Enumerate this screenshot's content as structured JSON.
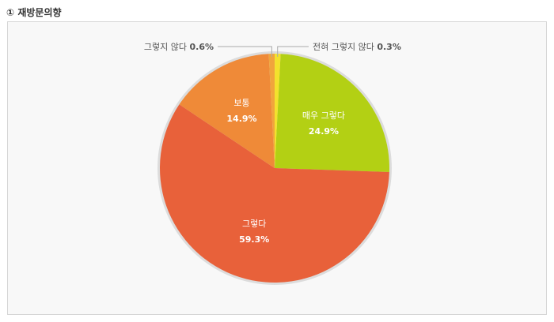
{
  "title": "① 재방문의향",
  "chart_data": {
    "type": "pie",
    "title": "",
    "slices": [
      {
        "label": "매우 그렇다",
        "value": 24.9,
        "display": "24.9%",
        "color": "#b3d014"
      },
      {
        "label": "그렇다",
        "value": 59.3,
        "display": "59.3%",
        "color": "#e8613a"
      },
      {
        "label": "보통",
        "value": 14.9,
        "display": "14.9%",
        "color": "#ef8a38"
      },
      {
        "label": "그렇지 않다",
        "value": 0.6,
        "display": "0.6%",
        "color": "#f1a53c"
      },
      {
        "label": "전혀 그렇지 않다",
        "value": 0.3,
        "display": "0.3%",
        "color": "#f3e22c"
      }
    ]
  }
}
